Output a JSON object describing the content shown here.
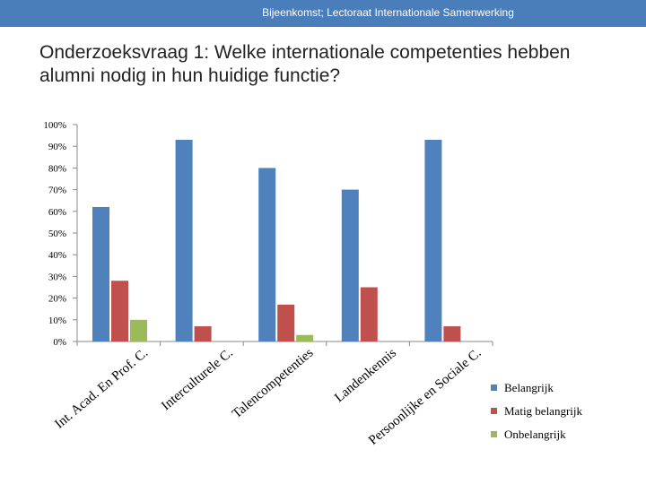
{
  "header": {
    "text": "Bijeenkomst; Lectoraat Internationale Samenwerking"
  },
  "title": "Onderzoeksvraag 1: Welke internationale competenties hebben alumni nodig in hun huidige functie?",
  "colors": {
    "header_bar": "#4a7ebb",
    "belangrijk": "#4f81bd",
    "matig": "#c0504d",
    "onbelangrijk": "#9bbb59"
  },
  "chart_data": {
    "type": "bar",
    "categories": [
      "Int. Acad. En Prof. C.",
      "Interculturele C.",
      "Talencompetenties",
      "Landenkennis",
      "Persoonlijke en Sociale C."
    ],
    "series": [
      {
        "name": "Belangrijk",
        "values": [
          62,
          93,
          80,
          70,
          93
        ]
      },
      {
        "name": "Matig belangrijk",
        "values": [
          28,
          7,
          17,
          25,
          7
        ]
      },
      {
        "name": "Onbelangrijk",
        "values": [
          10,
          0,
          3,
          0,
          0
        ]
      }
    ],
    "yticks": [
      "0%",
      "10%",
      "20%",
      "30%",
      "40%",
      "50%",
      "60%",
      "70%",
      "80%",
      "90%",
      "100%"
    ],
    "ylim": [
      0,
      100
    ],
    "grid": false,
    "legend": "right"
  }
}
